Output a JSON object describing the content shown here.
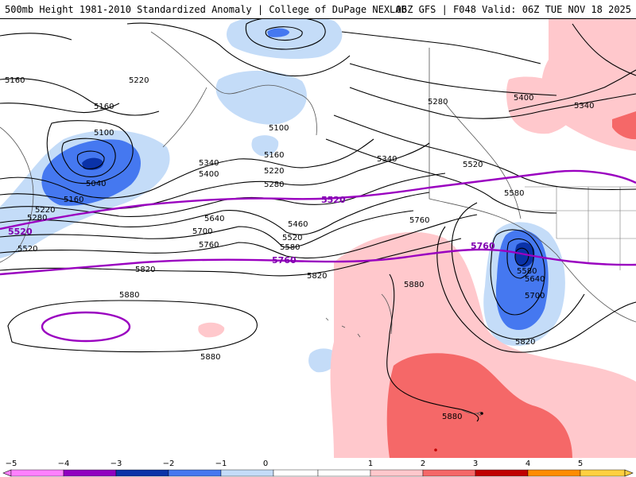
{
  "header": {
    "title": "500mb Height 1981-2010 Standardized Anomaly | College of DuPage NEXLAB",
    "run_info": "06Z GFS | F048 Valid: 06Z TUE NOV 18 2025"
  },
  "colors": {
    "neg5": "#ff80ff",
    "neg4": "#9000c0",
    "neg3": "#0a32a8",
    "neg2": "#4578f0",
    "neg1": "#c4dcf8",
    "zero": "#ffffff",
    "pos1": "#ffc8cc",
    "pos2": "#f56868",
    "pos3": "#c00000",
    "pos4": "#ff8c00",
    "pos5": "#ffd040",
    "contour": "#000000",
    "thickness": "#9a00c0",
    "coast": "#555555"
  },
  "contour_labels": {
    "h5160a": "5160",
    "h5220a": "5220",
    "h5160b": "5160",
    "h5100a": "5100",
    "h5040": "5040",
    "h5160c": "5160",
    "h5220b": "5220",
    "h5280a": "5280",
    "h5520a": "5520",
    "h5100b": "5100",
    "h5160d": "5160",
    "h5220c": "5220",
    "h5280b": "5280",
    "h5340a": "5340",
    "h5400a": "5400",
    "h5460": "5460",
    "h5520b": "5520",
    "h5580a": "5580",
    "h5640a": "5640",
    "h5700a": "5700",
    "h5760a": "5760",
    "h5820a": "5820",
    "h5880a": "5880",
    "h5820b": "5820",
    "h5760b": "5760",
    "h5340b": "5340",
    "h5280c": "5280",
    "h5400b": "5400",
    "h5340c": "5340",
    "h5520c": "5520",
    "h5580b": "5580",
    "h5580c": "5580",
    "h5640b": "5640",
    "h5700b": "5700",
    "h5820c": "5820",
    "h5880b": "5880",
    "h5880c": "5880",
    "h5880d": "5880"
  },
  "thickness_labels": {
    "t5520a": "5520",
    "t5520b": "5520",
    "t5760a": "5760",
    "t5760b": "5760"
  },
  "colorbar": {
    "ticks": [
      "−5",
      "−4",
      "−3",
      "−2",
      "−1",
      "0",
      "1",
      "2",
      "3",
      "4",
      "5"
    ],
    "values": [
      -5,
      -4,
      -3,
      -2,
      -1,
      0,
      1,
      2,
      3,
      4,
      5
    ]
  }
}
